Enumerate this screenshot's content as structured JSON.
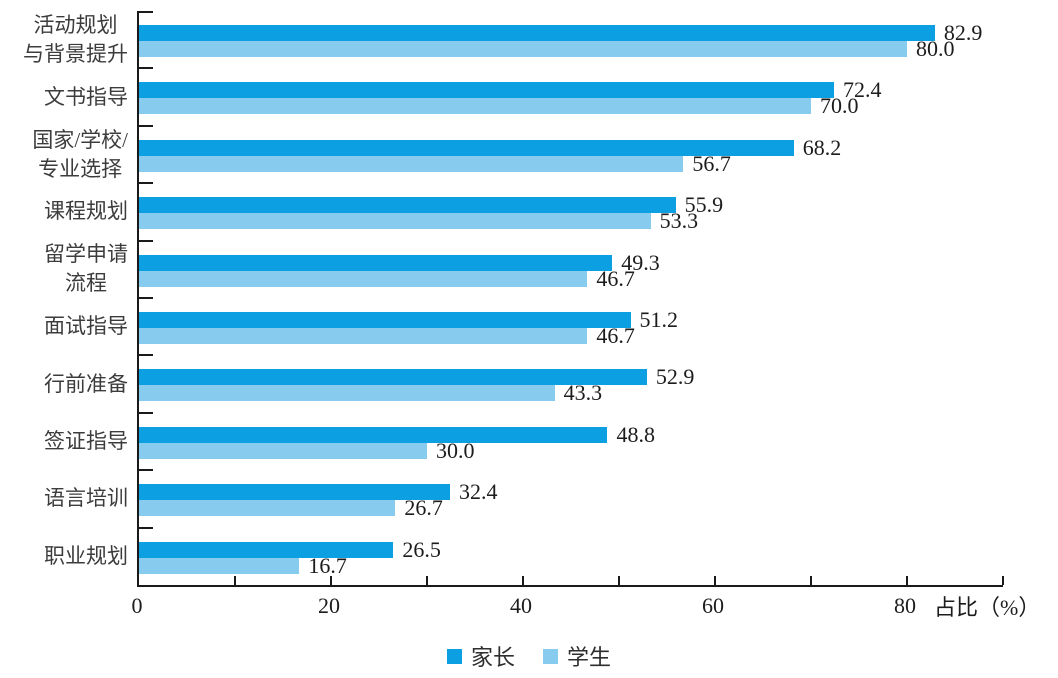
{
  "chart_data": {
    "type": "bar",
    "orientation": "horizontal",
    "categories": [
      "活动规划\n与背景提升",
      "文书指导",
      "国家/学校/\n专业选择",
      "课程规划",
      "留学申请\n流程",
      "面试指导",
      "行前准备",
      "签证指导",
      "语言培训",
      "职业规划"
    ],
    "series": [
      {
        "name": "家长",
        "color": "#0c9fe2",
        "values": [
          82.9,
          72.4,
          68.2,
          55.9,
          49.3,
          51.2,
          52.9,
          48.8,
          32.4,
          26.5
        ]
      },
      {
        "name": "学生",
        "color": "#87cbef",
        "values": [
          80.0,
          70.0,
          56.7,
          53.3,
          46.7,
          46.7,
          43.3,
          30.0,
          26.7,
          16.7
        ]
      }
    ],
    "xlabel": "占比（%）",
    "xlim": [
      0,
      90
    ],
    "x_tick_labels": [
      0,
      20,
      40,
      60,
      80
    ],
    "x_minor_tick_step": 10,
    "value_labels": true,
    "value_label_precision": 1,
    "grid": false,
    "legend_position": "bottom",
    "axis_color": "#1a1a1a"
  }
}
